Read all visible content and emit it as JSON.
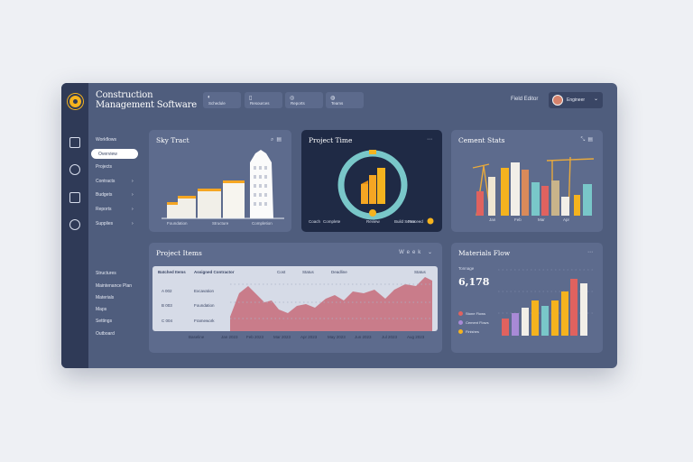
{
  "app": {
    "title_line1": "Construction",
    "title_line2": "Management Software"
  },
  "topbar": {
    "buttons": [
      {
        "icon": "◐",
        "label": "Schedule"
      },
      {
        "icon": "▯",
        "label": "Resources"
      },
      {
        "icon": "◎",
        "label": "Reports"
      },
      {
        "icon": "◍",
        "label": "Teams"
      }
    ],
    "user_label": "Field Editor",
    "user_name": "Engineer"
  },
  "sidebar": {
    "items": [
      {
        "label": "Workflows"
      },
      {
        "label": "Overview"
      },
      {
        "label": "Projects"
      },
      {
        "label": "Contracts"
      },
      {
        "label": "Budgets"
      },
      {
        "label": "Reports"
      },
      {
        "label": "Supplies"
      }
    ],
    "lower_items": [
      {
        "label": "Structures"
      },
      {
        "label": "Maintenance Plan"
      },
      {
        "label": "Materials"
      },
      {
        "label": "Maps"
      },
      {
        "label": "Settings"
      },
      {
        "label": "Outboard"
      }
    ]
  },
  "panels": {
    "sky_tract": {
      "title": "Sky Tract",
      "labels": [
        "Foundation",
        "Structure",
        "Completion"
      ]
    },
    "project_time": {
      "title": "Project Time",
      "labels": [
        "Coach",
        "Complete",
        "Review",
        "Build Score",
        "Proceed"
      ],
      "progress": 0.72
    },
    "cement_stats": {
      "title": "Cement Stats",
      "bar_labels": [
        "Jan",
        "Feb",
        "Mar",
        "Apr"
      ]
    },
    "project_items": {
      "title": "Project Items",
      "filter_label": "Week",
      "columns": [
        "Batched Items",
        "Assigned Contractor",
        "Cost",
        "Status",
        "Deadline",
        "Status"
      ],
      "rows": [
        {
          "id": "A 002",
          "name": "Excavation"
        },
        {
          "id": "B 003",
          "name": "Foundation"
        },
        {
          "id": "C 004",
          "name": "Framework"
        }
      ],
      "x_ticks": [
        "Baseline",
        "Jan 2023",
        "Feb 2023",
        "Mar 2023",
        "Apr 2023",
        "May 2023",
        "Jun 2023",
        "Jul 2023",
        "Aug 2023",
        "Sep 2023"
      ]
    },
    "materials_flow": {
      "title": "Materials Flow",
      "kpi_label": "Tonnage",
      "kpi_value": "6,178",
      "legend": [
        "Stone Flows",
        "Cement Flows",
        "Finishes"
      ]
    }
  },
  "colors": {
    "accent": "#f5b31e",
    "panel": "#5d6b8d",
    "panel_dark": "#1f2a45",
    "frame": "#4f5d7d",
    "rail": "#2f3a57",
    "area_fill": "#c97c8a",
    "teal": "#79c7c9"
  }
}
